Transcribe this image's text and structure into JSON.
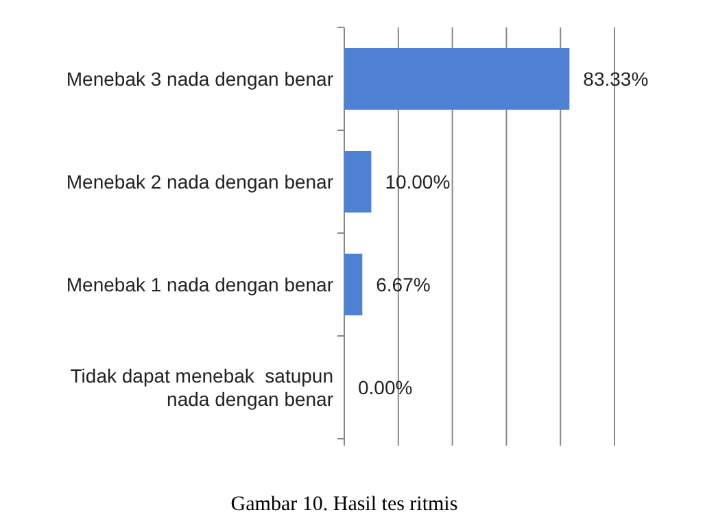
{
  "chart_data": {
    "type": "bar",
    "orientation": "horizontal",
    "title": "Gambar 10. Hasil tes ritmis",
    "categories": [
      "Menebak 3 nada dengan benar",
      "Menebak 2 nada dengan benar",
      "Menebak 1 nada dengan benar",
      "Tidak dapat menebak  satupun nada dengan benar"
    ],
    "values": [
      83.33,
      10.0,
      6.67,
      0.0
    ],
    "value_labels": [
      "83.33%",
      "10.00%",
      "6.67%",
      "0.00%"
    ],
    "color": "#4f81d3",
    "xlim": [
      0,
      100
    ],
    "xticks": [
      {
        "value": 0,
        "label": null
      },
      {
        "value": 20,
        "label": null
      },
      {
        "value": 40,
        "label": null
      },
      {
        "value": 60,
        "label": null
      },
      {
        "value": 80,
        "label": null
      },
      {
        "value": 100,
        "label": null
      }
    ],
    "grid": "x",
    "tick_labels": "y"
  }
}
